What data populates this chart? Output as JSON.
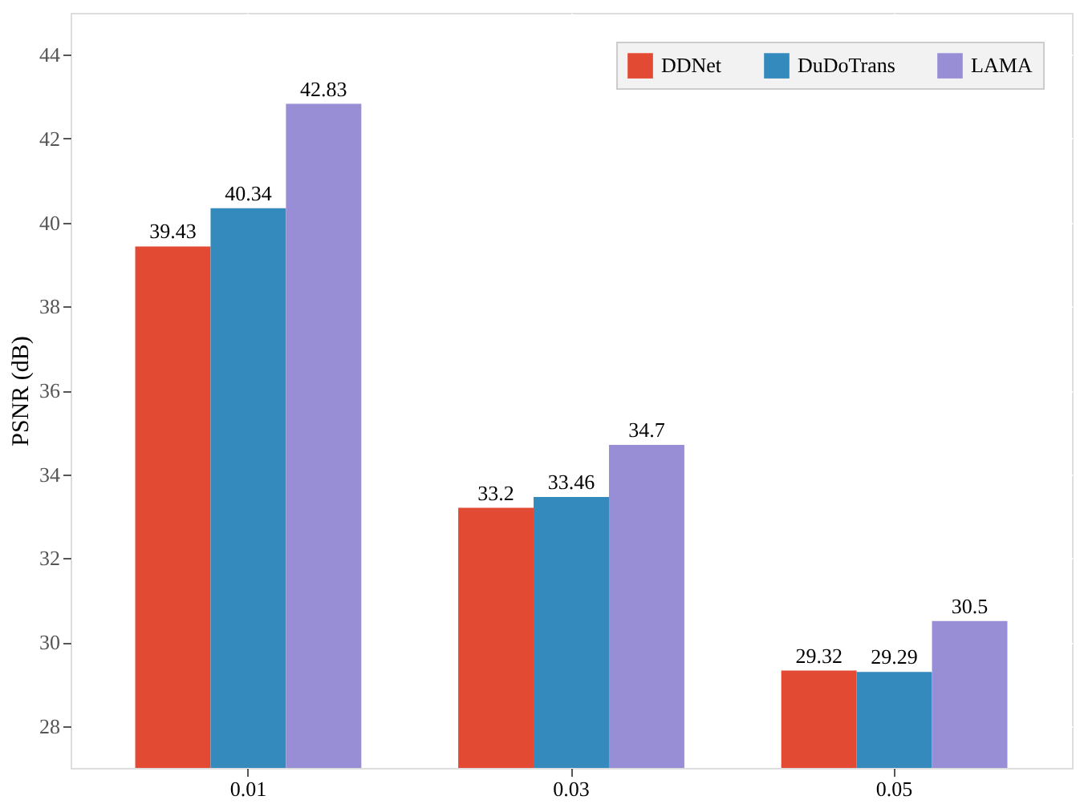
{
  "chart_data": {
    "type": "bar",
    "ylabel": "PSNR (dB)",
    "categories": [
      "0.01",
      "0.03",
      "0.05"
    ],
    "series": [
      {
        "name": "DDNet",
        "color": "#e24a33",
        "values": [
          39.43,
          33.2,
          29.32
        ]
      },
      {
        "name": "DuDoTrans",
        "color": "#348abd",
        "values": [
          40.34,
          33.46,
          29.29
        ]
      },
      {
        "name": "LAMA",
        "color": "#988ed5",
        "values": [
          42.83,
          34.7,
          30.5
        ]
      }
    ],
    "ylim": [
      27,
      45
    ],
    "yticks": [
      28,
      30,
      32,
      34,
      36,
      38,
      40,
      42,
      44
    ],
    "grid": true,
    "legend": "top right",
    "data_labels": true
  }
}
